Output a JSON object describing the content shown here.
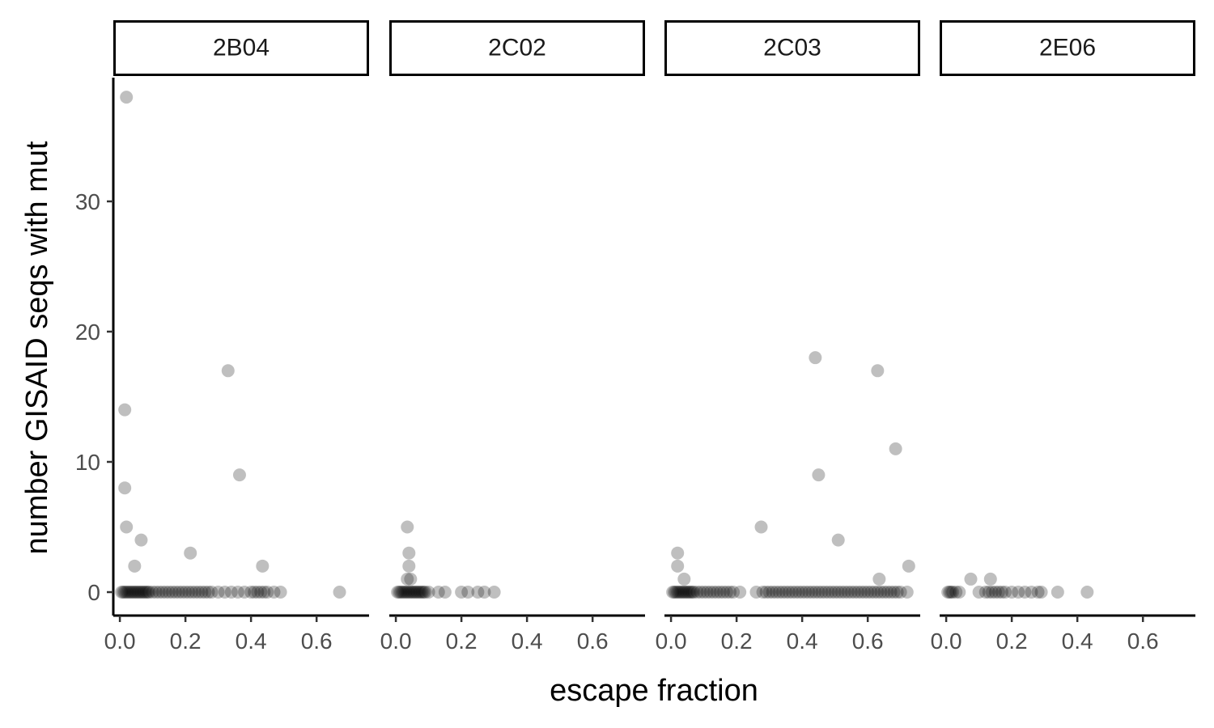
{
  "chart_data": {
    "type": "scatter",
    "facet_by": "antibody",
    "xlabel": "escape fraction",
    "ylabel": "number GISAID seqs with mut",
    "xlim": [
      -0.02,
      0.76
    ],
    "ylim": [
      -1.8,
      39.5
    ],
    "x_ticks": [
      0.0,
      0.2,
      0.4,
      0.6
    ],
    "x_tick_labels": [
      "0.0",
      "0.2",
      "0.4",
      "0.6"
    ],
    "y_ticks": [
      0,
      10,
      20,
      30
    ],
    "y_tick_labels": [
      "0",
      "10",
      "20",
      "30"
    ],
    "point_color": "#000000",
    "point_opacity": 0.25,
    "grid": false,
    "facets": [
      {
        "label": "2B04",
        "points": [
          [
            0.02,
            38
          ],
          [
            0.015,
            14
          ],
          [
            0.015,
            8
          ],
          [
            0.02,
            5
          ],
          [
            0.065,
            4
          ],
          [
            0.045,
            2
          ],
          [
            0.215,
            3
          ],
          [
            0.33,
            17
          ],
          [
            0.365,
            9
          ],
          [
            0.435,
            2
          ],
          [
            0.67,
            0
          ],
          [
            0.005,
            0
          ],
          [
            0.01,
            0
          ],
          [
            0.015,
            0
          ],
          [
            0.02,
            0
          ],
          [
            0.025,
            0
          ],
          [
            0.03,
            0
          ],
          [
            0.035,
            0
          ],
          [
            0.04,
            0
          ],
          [
            0.045,
            0
          ],
          [
            0.05,
            0
          ],
          [
            0.055,
            0
          ],
          [
            0.06,
            0
          ],
          [
            0.065,
            0
          ],
          [
            0.07,
            0
          ],
          [
            0.075,
            0
          ],
          [
            0.08,
            0
          ],
          [
            0.085,
            0
          ],
          [
            0.09,
            0
          ],
          [
            0.1,
            0
          ],
          [
            0.11,
            0
          ],
          [
            0.12,
            0
          ],
          [
            0.13,
            0
          ],
          [
            0.14,
            0
          ],
          [
            0.15,
            0
          ],
          [
            0.16,
            0
          ],
          [
            0.17,
            0
          ],
          [
            0.18,
            0
          ],
          [
            0.19,
            0
          ],
          [
            0.2,
            0
          ],
          [
            0.21,
            0
          ],
          [
            0.22,
            0
          ],
          [
            0.23,
            0
          ],
          [
            0.24,
            0
          ],
          [
            0.25,
            0
          ],
          [
            0.26,
            0
          ],
          [
            0.27,
            0
          ],
          [
            0.28,
            0
          ],
          [
            0.3,
            0
          ],
          [
            0.32,
            0
          ],
          [
            0.34,
            0
          ],
          [
            0.36,
            0
          ],
          [
            0.38,
            0
          ],
          [
            0.4,
            0
          ],
          [
            0.41,
            0
          ],
          [
            0.42,
            0
          ],
          [
            0.43,
            0
          ],
          [
            0.44,
            0
          ],
          [
            0.45,
            0
          ],
          [
            0.47,
            0
          ],
          [
            0.49,
            0
          ]
        ]
      },
      {
        "label": "2C02",
        "points": [
          [
            0.035,
            5
          ],
          [
            0.04,
            3
          ],
          [
            0.04,
            2
          ],
          [
            0.035,
            1
          ],
          [
            0.045,
            1
          ],
          [
            0.005,
            0
          ],
          [
            0.01,
            0
          ],
          [
            0.015,
            0
          ],
          [
            0.02,
            0
          ],
          [
            0.025,
            0
          ],
          [
            0.03,
            0
          ],
          [
            0.035,
            0
          ],
          [
            0.04,
            0
          ],
          [
            0.045,
            0
          ],
          [
            0.05,
            0
          ],
          [
            0.055,
            0
          ],
          [
            0.06,
            0
          ],
          [
            0.065,
            0
          ],
          [
            0.07,
            0
          ],
          [
            0.075,
            0
          ],
          [
            0.08,
            0
          ],
          [
            0.085,
            0
          ],
          [
            0.09,
            0
          ],
          [
            0.1,
            0
          ],
          [
            0.13,
            0
          ],
          [
            0.15,
            0
          ],
          [
            0.2,
            0
          ],
          [
            0.22,
            0
          ],
          [
            0.25,
            0
          ],
          [
            0.27,
            0
          ],
          [
            0.3,
            0
          ]
        ]
      },
      {
        "label": "2C03",
        "points": [
          [
            0.02,
            3
          ],
          [
            0.02,
            2
          ],
          [
            0.04,
            1
          ],
          [
            0.275,
            5
          ],
          [
            0.44,
            18
          ],
          [
            0.45,
            9
          ],
          [
            0.51,
            4
          ],
          [
            0.63,
            17
          ],
          [
            0.685,
            11
          ],
          [
            0.725,
            2
          ],
          [
            0.635,
            1
          ],
          [
            0.005,
            0
          ],
          [
            0.01,
            0
          ],
          [
            0.015,
            0
          ],
          [
            0.02,
            0
          ],
          [
            0.025,
            0
          ],
          [
            0.03,
            0
          ],
          [
            0.035,
            0
          ],
          [
            0.04,
            0
          ],
          [
            0.045,
            0
          ],
          [
            0.05,
            0
          ],
          [
            0.055,
            0
          ],
          [
            0.06,
            0
          ],
          [
            0.065,
            0
          ],
          [
            0.07,
            0
          ],
          [
            0.08,
            0
          ],
          [
            0.09,
            0
          ],
          [
            0.1,
            0
          ],
          [
            0.11,
            0
          ],
          [
            0.12,
            0
          ],
          [
            0.13,
            0
          ],
          [
            0.14,
            0
          ],
          [
            0.15,
            0
          ],
          [
            0.16,
            0
          ],
          [
            0.17,
            0
          ],
          [
            0.18,
            0
          ],
          [
            0.19,
            0
          ],
          [
            0.21,
            0
          ],
          [
            0.26,
            0
          ],
          [
            0.28,
            0
          ],
          [
            0.29,
            0
          ],
          [
            0.3,
            0
          ],
          [
            0.31,
            0
          ],
          [
            0.32,
            0
          ],
          [
            0.33,
            0
          ],
          [
            0.34,
            0
          ],
          [
            0.35,
            0
          ],
          [
            0.36,
            0
          ],
          [
            0.37,
            0
          ],
          [
            0.38,
            0
          ],
          [
            0.39,
            0
          ],
          [
            0.4,
            0
          ],
          [
            0.41,
            0
          ],
          [
            0.42,
            0
          ],
          [
            0.43,
            0
          ],
          [
            0.44,
            0
          ],
          [
            0.45,
            0
          ],
          [
            0.46,
            0
          ],
          [
            0.47,
            0
          ],
          [
            0.48,
            0
          ],
          [
            0.49,
            0
          ],
          [
            0.5,
            0
          ],
          [
            0.51,
            0
          ],
          [
            0.52,
            0
          ],
          [
            0.53,
            0
          ],
          [
            0.54,
            0
          ],
          [
            0.55,
            0
          ],
          [
            0.56,
            0
          ],
          [
            0.57,
            0
          ],
          [
            0.58,
            0
          ],
          [
            0.59,
            0
          ],
          [
            0.6,
            0
          ],
          [
            0.61,
            0
          ],
          [
            0.62,
            0
          ],
          [
            0.63,
            0
          ],
          [
            0.64,
            0
          ],
          [
            0.65,
            0
          ],
          [
            0.66,
            0
          ],
          [
            0.67,
            0
          ],
          [
            0.68,
            0
          ],
          [
            0.69,
            0
          ],
          [
            0.7,
            0
          ],
          [
            0.72,
            0
          ]
        ]
      },
      {
        "label": "2E06",
        "points": [
          [
            0.075,
            1
          ],
          [
            0.135,
            1
          ],
          [
            0.005,
            0
          ],
          [
            0.01,
            0
          ],
          [
            0.015,
            0
          ],
          [
            0.02,
            0
          ],
          [
            0.03,
            0
          ],
          [
            0.04,
            0
          ],
          [
            0.1,
            0
          ],
          [
            0.12,
            0
          ],
          [
            0.13,
            0
          ],
          [
            0.14,
            0
          ],
          [
            0.15,
            0
          ],
          [
            0.16,
            0
          ],
          [
            0.17,
            0
          ],
          [
            0.18,
            0
          ],
          [
            0.2,
            0
          ],
          [
            0.22,
            0
          ],
          [
            0.24,
            0
          ],
          [
            0.26,
            0
          ],
          [
            0.28,
            0
          ],
          [
            0.29,
            0
          ],
          [
            0.34,
            0
          ],
          [
            0.43,
            0
          ]
        ]
      }
    ]
  }
}
